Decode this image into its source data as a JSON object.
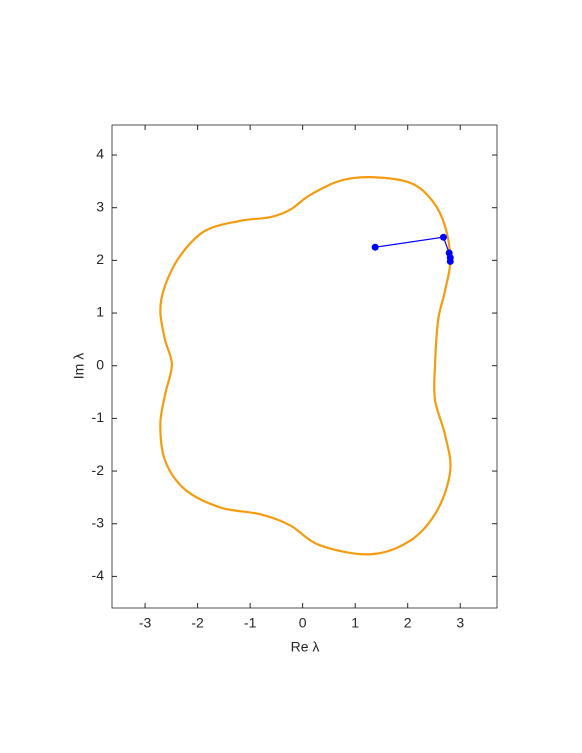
{
  "chart_data": {
    "type": "line",
    "xlabel": "Re λ",
    "ylabel": "Im λ",
    "xlim": [
      -3.63,
      3.7
    ],
    "ylim": [
      -4.6,
      4.57
    ],
    "xticks": [
      -3,
      -2,
      -1,
      0,
      1,
      2,
      3
    ],
    "yticks": [
      -4,
      -3,
      -2,
      -1,
      0,
      1,
      2,
      3,
      4
    ],
    "series": [
      {
        "color": "#f39c12",
        "closed": true,
        "x": [
          2.81,
          2.71,
          2.47,
          2.05,
          1.29,
          0.71,
          0.14,
          -0.24,
          -0.62,
          -1.19,
          -1.86,
          -2.33,
          -2.62,
          -2.71,
          -2.62,
          -2.49,
          -2.62,
          -2.71,
          -2.62,
          -2.24,
          -1.57,
          -0.81,
          -0.24,
          0.33,
          1.29,
          2.05,
          2.56,
          2.81,
          2.71,
          2.52,
          2.52,
          2.58,
          2.71
        ],
        "values": [
          2.0,
          2.65,
          3.13,
          3.47,
          3.58,
          3.51,
          3.24,
          2.96,
          2.82,
          2.75,
          2.56,
          2.09,
          1.52,
          1.04,
          0.49,
          0.02,
          -0.55,
          -1.12,
          -1.8,
          -2.35,
          -2.69,
          -2.82,
          -3.03,
          -3.41,
          -3.58,
          -3.32,
          -2.75,
          -1.99,
          -1.31,
          -0.65,
          0.02,
          0.87,
          1.42
        ]
      },
      {
        "color": "#0000ff",
        "markers": true,
        "x": [
          1.38,
          2.68,
          2.79,
          2.81,
          2.81
        ],
        "values": [
          2.25,
          2.44,
          2.14,
          2.05,
          1.98
        ]
      }
    ]
  }
}
